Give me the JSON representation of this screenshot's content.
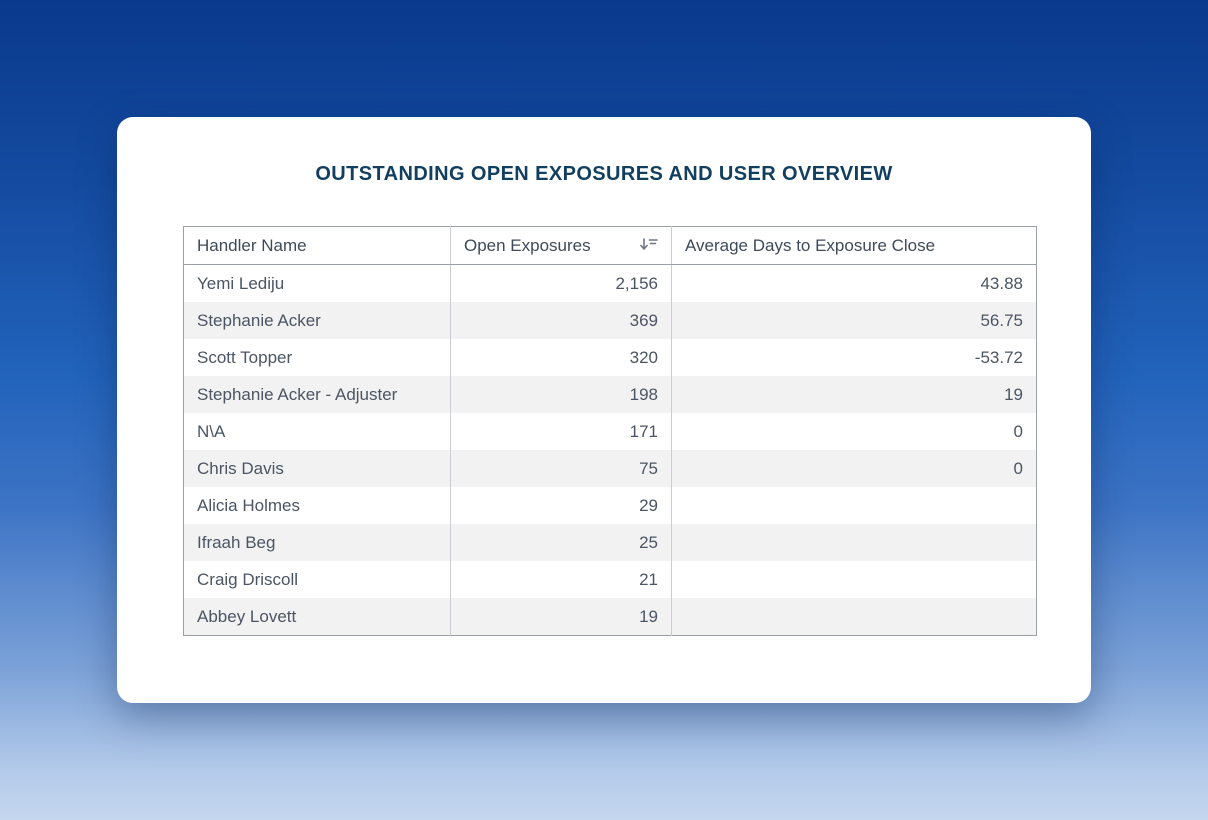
{
  "page": {
    "title": "OUTSTANDING OPEN EXPOSURES AND USER OVERVIEW"
  },
  "colors": {
    "title": "#123f5f",
    "background_top": "#09398c",
    "background_bottom": "#c5d6ef",
    "stripe": "#f2f2f2",
    "table_border": "#9a9fa6"
  },
  "table": {
    "columns": [
      "Handler Name",
      "Open Exposures",
      "Average Days to Exposure Close"
    ],
    "sorted_column": "Open Exposures",
    "sort_direction": "descending",
    "rows": [
      {
        "handler": "Yemi Lediju",
        "open_exposures": "2,156",
        "avg_days": "43.88"
      },
      {
        "handler": "Stephanie Acker",
        "open_exposures": "369",
        "avg_days": "56.75"
      },
      {
        "handler": "Scott Topper",
        "open_exposures": "320",
        "avg_days": "-53.72"
      },
      {
        "handler": "Stephanie Acker - Adjuster",
        "open_exposures": "198",
        "avg_days": "19"
      },
      {
        "handler": "N\\A",
        "open_exposures": "171",
        "avg_days": "0"
      },
      {
        "handler": "Chris Davis",
        "open_exposures": "75",
        "avg_days": "0"
      },
      {
        "handler": "Alicia Holmes",
        "open_exposures": "29",
        "avg_days": ""
      },
      {
        "handler": "Ifraah Beg",
        "open_exposures": "25",
        "avg_days": ""
      },
      {
        "handler": "Craig Driscoll",
        "open_exposures": "21",
        "avg_days": ""
      },
      {
        "handler": "Abbey Lovett",
        "open_exposures": "19",
        "avg_days": ""
      }
    ]
  }
}
